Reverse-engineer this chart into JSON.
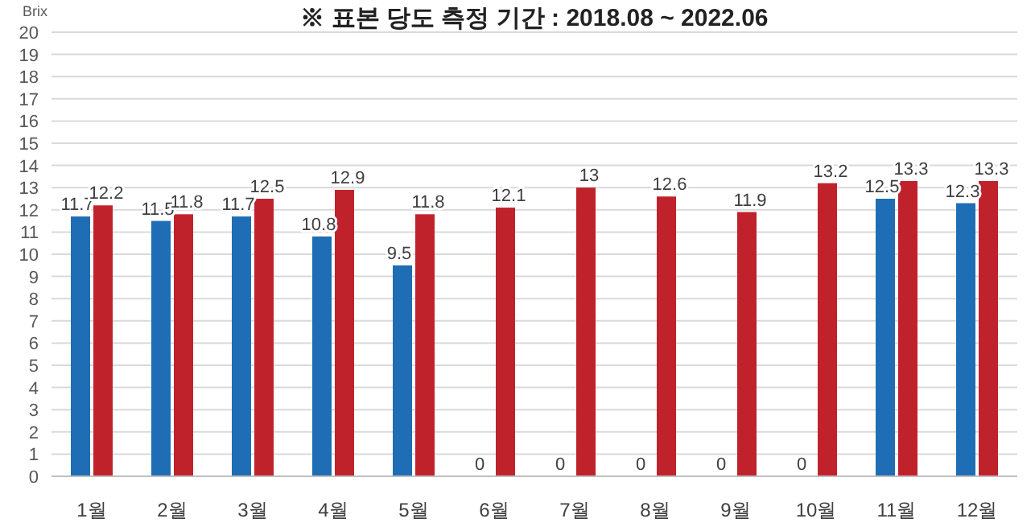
{
  "chart_data": {
    "type": "bar",
    "title": "※ 표본 당도 측정 기간 : 2018.08 ~ 2022.06",
    "ylabel": "Brix",
    "categories": [
      "1월",
      "2월",
      "3월",
      "4월",
      "5월",
      "6월",
      "7월",
      "8월",
      "9월",
      "10월",
      "11월",
      "12월"
    ],
    "series": [
      {
        "color": "#1f6db4",
        "values": [
          11.7,
          11.5,
          11.7,
          10.8,
          9.5,
          0,
          0,
          0,
          0,
          0,
          12.5,
          12.3
        ]
      },
      {
        "color": "#c0222c",
        "values": [
          12.2,
          11.8,
          12.5,
          12.9,
          11.8,
          12.1,
          13,
          12.6,
          11.9,
          13.2,
          13.3,
          13.3
        ]
      }
    ],
    "ylim": [
      0,
      20
    ],
    "yticks": [
      0,
      1,
      2,
      3,
      4,
      5,
      6,
      7,
      8,
      9,
      10,
      11,
      12,
      13,
      14,
      15,
      16,
      17,
      18,
      19,
      20
    ],
    "grid": "y",
    "data_labels": true
  }
}
